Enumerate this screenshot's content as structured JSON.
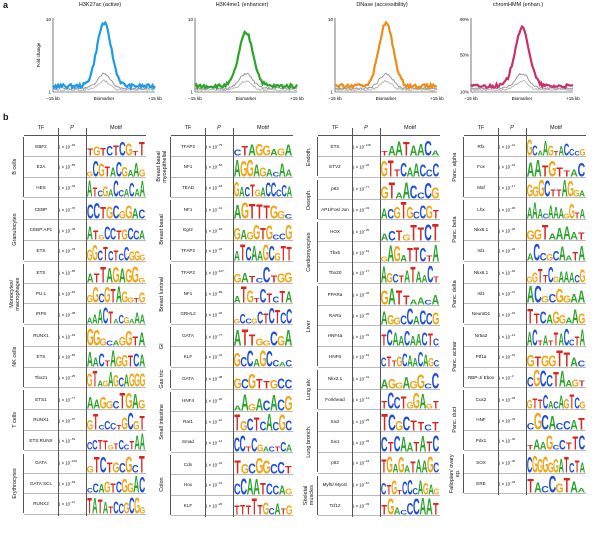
{
  "panel_a": {
    "letter": "a",
    "plots": [
      {
        "title": "H3K27ac (active)",
        "color": "#1e9be8",
        "ymax_label": "10",
        "ymin_label": "1",
        "ylabel": "Fold change",
        "x_left": "−15 kb",
        "x_mid": "Biomarker",
        "x_right": "+15 kb"
      },
      {
        "title": "H3K4me1 (enhancer)",
        "color": "#2aa52a",
        "ymax_label": "10",
        "ymin_label": "1",
        "ylabel": "",
        "x_left": "−15 kb",
        "x_mid": "Biomarker",
        "x_right": "+15 kb"
      },
      {
        "title": "DNase (accessibility)",
        "color": "#f08c16",
        "ymax_label": "10",
        "ymin_label": "1",
        "ylabel": "",
        "x_left": "−15 kb",
        "x_mid": "Biomarker",
        "x_right": "+15 kb"
      },
      {
        "title": "chromHMM (enhan.)",
        "color": "#c8306e",
        "ymax_label": "90%",
        "ymin_label": "10%",
        "ymid_label": "50%",
        "ylabel": "",
        "x_left": "−15 kb",
        "x_mid": "Biomarker",
        "x_right": "+15 kb"
      }
    ]
  },
  "panel_b": {
    "letter": "b",
    "headers": {
      "tf": "TF",
      "p": "P",
      "motif": "Motif"
    },
    "columns": [
      {
        "groups": [
          {
            "label": "B cells",
            "rows": [
              {
                "tf": "EBF2",
                "p": "1 × 10",
                "e": "−63"
              },
              {
                "tf": "E2A",
                "p": "1 × 10",
                "e": "−55"
              },
              {
                "tf": "HES",
                "p": "1 × 10",
                "e": "−34"
              }
            ]
          },
          {
            "label": "Granulocytes",
            "rows": [
              {
                "tf": "CEBP",
                "p": "1 × 10",
                "e": "−70"
              },
              {
                "tf": "CEBP:AP1",
                "p": "1 × 10",
                "e": "−48"
              },
              {
                "tf": "ETS",
                "p": "1 × 10",
                "e": "−33"
              }
            ]
          },
          {
            "label": "Monocytes/ macrophages",
            "rows": [
              {
                "tf": "ETS",
                "p": "1 × 10",
                "e": "−65"
              },
              {
                "tf": "PU.1",
                "p": "1 × 10",
                "e": "−62"
              },
              {
                "tf": "IRF8",
                "p": "1 × 10",
                "e": "−38"
              }
            ]
          },
          {
            "label": "NK cells",
            "rows": [
              {
                "tf": "RUNX1",
                "p": "1 × 10",
                "e": "−63"
              },
              {
                "tf": "ETS",
                "p": "1 × 10",
                "e": "−55"
              },
              {
                "tf": "Tbx21",
                "p": "1 × 10",
                "e": "−25"
              }
            ]
          },
          {
            "label": "T cells",
            "rows": [
              {
                "tf": "ETS1",
                "p": "1 × 10",
                "e": "−77"
              },
              {
                "tf": "RUNX1",
                "p": "1 × 10",
                "e": "−67"
              },
              {
                "tf": "ETS:RUNX",
                "p": "1 × 10",
                "e": "−52"
              }
            ]
          },
          {
            "label": "Erythrocytes",
            "rows": [
              {
                "tf": "GATA",
                "p": "1 × 10",
                "e": "−109"
              },
              {
                "tf": "GATA:SCL",
                "p": "1 × 10",
                "e": "−69"
              },
              {
                "tf": "RUNX2",
                "p": "1 × 10",
                "e": "−11"
              }
            ]
          }
        ]
      },
      {
        "groups": [
          {
            "label": "Breast basal myoepithelial",
            "rows": [
              {
                "tf": "TFAP2",
                "p": "1 × 10",
                "e": "−79"
              },
              {
                "tf": "NF1",
                "p": "1 × 10",
                "e": "−52"
              },
              {
                "tf": "TEAD",
                "p": "1 × 10",
                "e": "−18"
              }
            ]
          },
          {
            "label": "Breast basal",
            "rows": [
              {
                "tf": "NF1",
                "p": "1 × 10",
                "e": "−41"
              },
              {
                "tf": "Egr2",
                "p": "1 × 10",
                "e": "−18"
              },
              {
                "tf": "TFAP2",
                "p": "1 × 10",
                "e": "−20"
              }
            ]
          },
          {
            "label": "Breast luminal",
            "rows": [
              {
                "tf": "TFAP2",
                "p": "1 × 10",
                "e": "−127"
              },
              {
                "tf": "NF1",
                "p": "1 × 10",
                "e": "−89"
              },
              {
                "tf": "GRHL2",
                "p": "1 × 10",
                "e": "−45"
              }
            ]
          },
          {
            "label": "GI",
            "rows": [
              {
                "tf": "GATA",
                "p": "1 × 10",
                "e": "−77"
              },
              {
                "tf": "KLF",
                "p": "1 × 10",
                "e": "−44"
              }
            ]
          },
          {
            "label": "Gas tric",
            "rows": [
              {
                "tf": "GATA",
                "p": "1 × 10",
                "e": "−38"
              }
            ]
          },
          {
            "label": "Small intestine",
            "rows": [
              {
                "tf": "HNF4",
                "p": "1 × 10",
                "e": "−46"
              },
              {
                "tf": "Rar1",
                "p": "1 × 10",
                "e": "−22"
              },
              {
                "tf": "Smad",
                "p": "1 × 10",
                "e": "−14"
              }
            ]
          },
          {
            "label": "Colon",
            "rows": [
              {
                "tf": "Cdx",
                "p": "1 × 10",
                "e": "−44"
              },
              {
                "tf": "Hox",
                "p": "1 × 10",
                "e": "−31"
              },
              {
                "tf": "KLF",
                "p": "1 × 10",
                "e": "−26"
              }
            ]
          }
        ]
      },
      {
        "groups": [
          {
            "label": "Endoth.",
            "rows": [
              {
                "tf": "ETS",
                "p": "1 × 10",
                "e": "−118"
              },
              {
                "tf": "ETV2",
                "p": "1 × 10",
                "e": "−22"
              }
            ]
          },
          {
            "label": "Oesoph.",
            "rows": [
              {
                "tf": "p63",
                "p": "1 × 10",
                "e": "−77"
              },
              {
                "tf": "AP1/Fos/ Jun",
                "p": "1 × 10",
                "e": "−43"
              }
            ]
          },
          {
            "label": "Cardiomyocytes",
            "rows": [
              {
                "tf": "HOX",
                "p": "1 × 10",
                "e": "−25"
              },
              {
                "tf": "Tbx5",
                "p": "1 × 10",
                "e": "−19"
              },
              {
                "tf": "Tbx20",
                "p": "1 × 10",
                "e": "−17"
              }
            ]
          },
          {
            "label": "Liver",
            "rows": [
              {
                "tf": "PPARa",
                "p": "1 × 10",
                "e": "−34"
              },
              {
                "tf": "RARa",
                "p": "1 × 10",
                "e": "−25"
              },
              {
                "tf": "HNF4a",
                "p": "1 × 10",
                "e": "−31"
              },
              {
                "tf": "HNF6",
                "p": "1 × 10",
                "e": "−19"
              }
            ]
          },
          {
            "label": "Lung alv.",
            "rows": [
              {
                "tf": "Nkx2.1",
                "p": "1 × 10",
                "e": "−41"
              },
              {
                "tf": "Forkhead",
                "p": "1 × 10",
                "e": "−14"
              }
            ]
          },
          {
            "label": "Lung bronch.",
            "rows": [
              {
                "tf": "Six2",
                "p": "1 × 10",
                "e": "−29"
              },
              {
                "tf": "Six1",
                "p": "1 × 10",
                "e": "−22"
              },
              {
                "tf": "p63",
                "p": "1 × 10",
                "e": "−19"
              }
            ]
          },
          {
            "label": "Skeletal muscles",
            "rows": [
              {
                "tf": "Myf5/ MyoG",
                "p": "1 × 10",
                "e": "−67"
              },
              {
                "tf": "Tcf12",
                "p": "1 × 10",
                "e": "−33"
              }
            ]
          }
        ]
      },
      {
        "groups": [
          {
            "label": "Panc. alpha",
            "rows": [
              {
                "tf": "Rfx",
                "p": "1 × 10",
                "e": "−21"
              },
              {
                "tf": "Fox",
                "p": "1 × 10",
                "e": "−19"
              },
              {
                "tf": "Maf",
                "p": "1 × 10",
                "e": "−17"
              }
            ]
          },
          {
            "label": "Panc. beta",
            "rows": [
              {
                "tf": "Lhx",
                "p": "1 × 10",
                "e": "−30"
              },
              {
                "tf": "Nkx6.1",
                "p": "1 × 10",
                "e": "−26"
              },
              {
                "tf": "Isl1",
                "p": "1 × 10",
                "e": "−26"
              }
            ]
          },
          {
            "label": "Panc. delta",
            "rows": [
              {
                "tf": "Nkx6.1",
                "p": "1 × 10",
                "e": "−64"
              },
              {
                "tf": "Isl1",
                "p": "1 × 10",
                "e": "−47"
              },
              {
                "tf": "NeuroD1",
                "p": "1 × 10",
                "e": "−15"
              }
            ]
          },
          {
            "label": "Panc. acinar",
            "rows": [
              {
                "tf": "Nr5a2",
                "p": "1 × 10",
                "e": "−13"
              },
              {
                "tf": "Ptf1a",
                "p": "1 × 10",
                "e": "−16"
              },
              {
                "tf": "RBP-J/ Ebox",
                "p": "1 × 10",
                "e": "−3"
              }
            ]
          },
          {
            "label": "Panc. duct",
            "rows": [
              {
                "tf": "Cux2",
                "p": "1 × 10",
                "e": "−45"
              },
              {
                "tf": "HNF",
                "p": "1 × 10",
                "e": "−33"
              },
              {
                "tf": "Pdx1",
                "p": "1 × 10",
                "e": "−30"
              }
            ]
          },
          {
            "label": "Fallopian/ ovary ep.",
            "rows": [
              {
                "tf": "SOX",
                "p": "1 × 10",
                "e": "−45"
              },
              {
                "tf": "ERE",
                "p": "1 × 10",
                "e": "−23"
              }
            ]
          }
        ]
      }
    ]
  }
}
